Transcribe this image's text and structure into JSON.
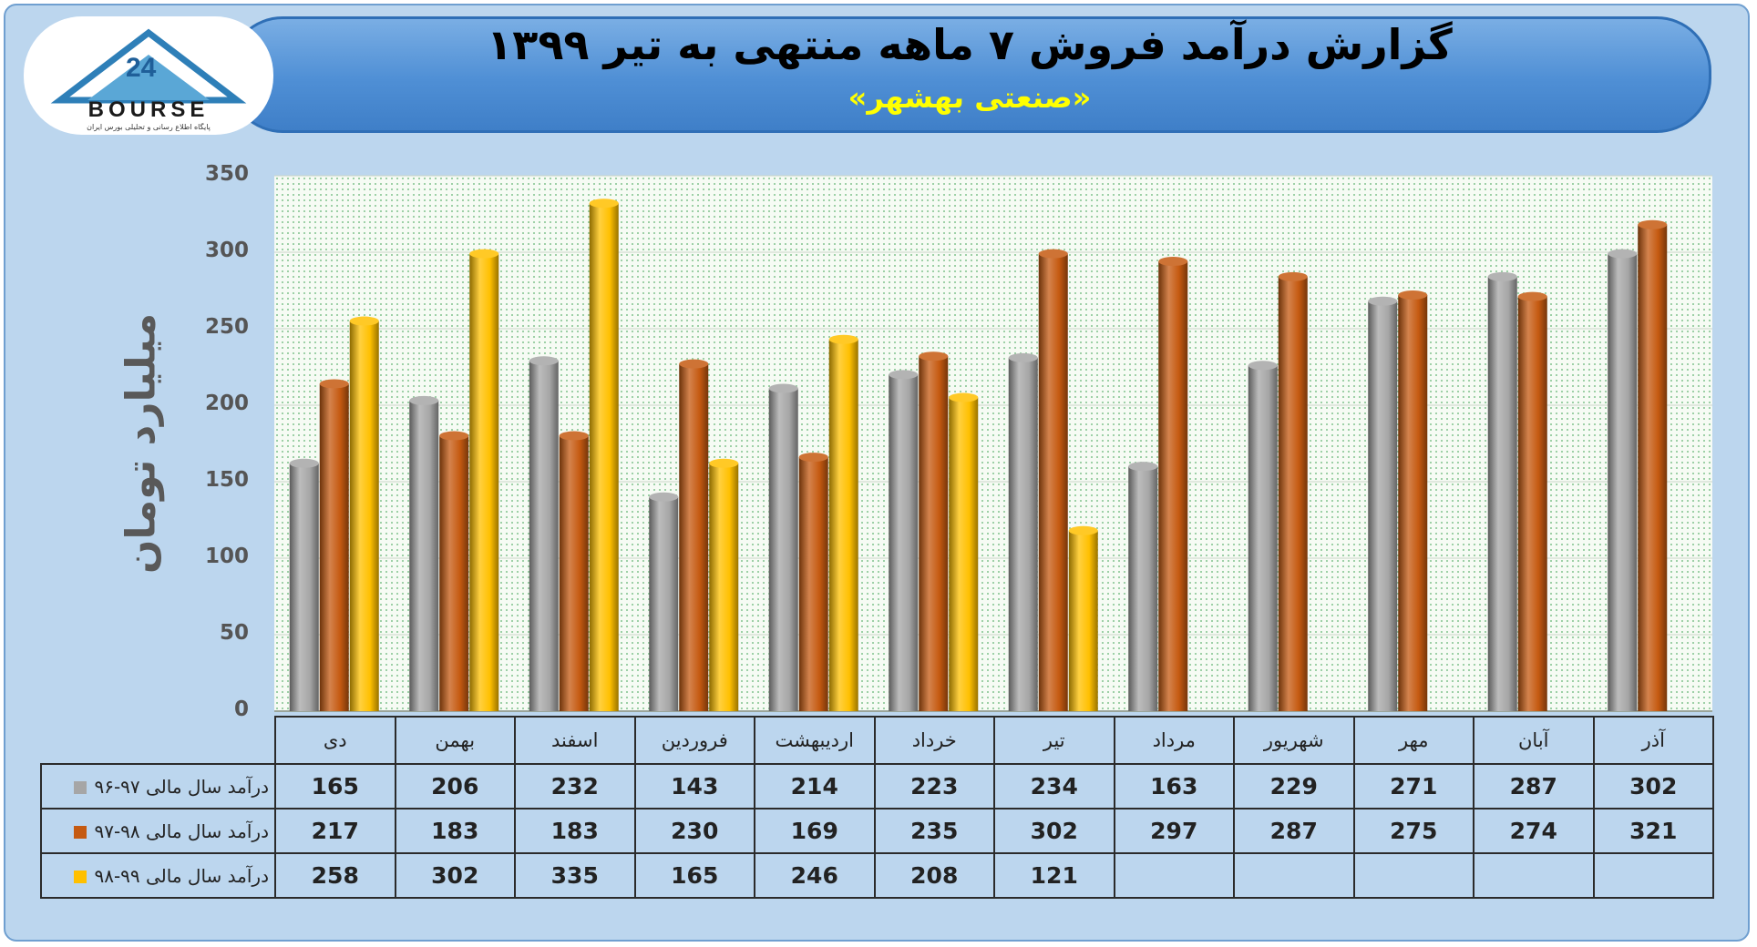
{
  "header": {
    "title": "گزارش درآمد فروش ۷ ماهه منتهی به تیر ۱۳۹۹",
    "subtitle": "«صنعتی بهشهر»"
  },
  "logo": {
    "text": "BOURSE",
    "tagline": "پایگاه اطلاع رسانی و تحلیلی بورس ایران"
  },
  "colors": {
    "series1": "#a6a6a6",
    "series2": "#c55a11",
    "series3": "#ffc000",
    "banner": "#4f8fd5",
    "frame": "#bcd6ee"
  },
  "chart_data": {
    "type": "bar",
    "ylabel": "میلیارد تومان",
    "ylim": [
      0,
      350
    ],
    "yticks": [
      "0",
      "50",
      "100",
      "150",
      "200",
      "250",
      "300",
      "350"
    ],
    "categories": [
      "دی",
      "بهمن",
      "اسفند",
      "فروردین",
      "اردیبهشت",
      "خرداد",
      "تیر",
      "مرداد",
      "شهریور",
      "مهر",
      "آبان",
      "آذر"
    ],
    "series": [
      {
        "name": "درآمد سال مالی ۹۷-۹۶",
        "color": "#a6a6a6",
        "values": [
          165,
          206,
          232,
          143,
          214,
          223,
          234,
          163,
          229,
          271,
          287,
          302
        ]
      },
      {
        "name": "درآمد سال مالی ۹۸-۹۷",
        "color": "#c55a11",
        "values": [
          217,
          183,
          183,
          230,
          169,
          235,
          302,
          297,
          287,
          275,
          274,
          321
        ]
      },
      {
        "name": "درآمد سال مالی ۹۹-۹۸",
        "color": "#ffc000",
        "values": [
          258,
          302,
          335,
          165,
          246,
          208,
          121,
          null,
          null,
          null,
          null,
          null
        ]
      }
    ],
    "grid": true,
    "legend": "data-table"
  }
}
